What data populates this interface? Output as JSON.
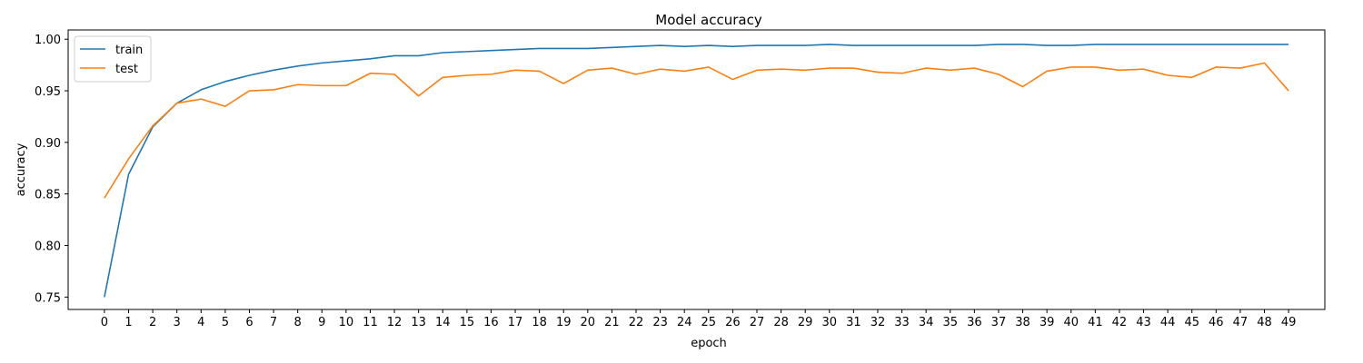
{
  "chart_data": {
    "type": "line",
    "title": "Model accuracy",
    "xlabel": "epoch",
    "ylabel": "accuracy",
    "x": [
      0,
      1,
      2,
      3,
      4,
      5,
      6,
      7,
      8,
      9,
      10,
      11,
      12,
      13,
      14,
      15,
      16,
      17,
      18,
      19,
      20,
      21,
      22,
      23,
      24,
      25,
      26,
      27,
      28,
      29,
      30,
      31,
      32,
      33,
      34,
      35,
      36,
      37,
      38,
      39,
      40,
      41,
      42,
      43,
      44,
      45,
      46,
      47,
      48,
      49
    ],
    "xlim": [
      -1.5,
      50.5
    ],
    "ylim": [
      0.738,
      1.009
    ],
    "yticks": [
      0.75,
      0.8,
      0.85,
      0.9,
      0.95,
      1.0
    ],
    "ytick_labels": [
      "0.75",
      "0.80",
      "0.85",
      "0.90",
      "0.95",
      "1.00"
    ],
    "grid": false,
    "legend_position": "top-left",
    "series": [
      {
        "name": "train",
        "color": "#1f77b4",
        "values": [
          0.75,
          0.869,
          0.915,
          0.938,
          0.951,
          0.959,
          0.965,
          0.97,
          0.974,
          0.977,
          0.979,
          0.981,
          0.984,
          0.984,
          0.987,
          0.988,
          0.989,
          0.99,
          0.991,
          0.991,
          0.991,
          0.992,
          0.993,
          0.994,
          0.993,
          0.994,
          0.993,
          0.994,
          0.994,
          0.994,
          0.995,
          0.994,
          0.994,
          0.994,
          0.994,
          0.994,
          0.994,
          0.995,
          0.995,
          0.994,
          0.994,
          0.995,
          0.995,
          0.995,
          0.995,
          0.995,
          0.995,
          0.995,
          0.995,
          0.995
        ]
      },
      {
        "name": "test",
        "color": "#ff7f0e",
        "values": [
          0.846,
          0.884,
          0.916,
          0.938,
          0.942,
          0.935,
          0.95,
          0.951,
          0.956,
          0.955,
          0.955,
          0.967,
          0.966,
          0.945,
          0.963,
          0.965,
          0.966,
          0.97,
          0.969,
          0.957,
          0.97,
          0.972,
          0.966,
          0.971,
          0.969,
          0.973,
          0.961,
          0.97,
          0.971,
          0.97,
          0.972,
          0.972,
          0.968,
          0.967,
          0.972,
          0.97,
          0.972,
          0.966,
          0.954,
          0.969,
          0.973,
          0.973,
          0.97,
          0.971,
          0.965,
          0.963,
          0.973,
          0.972,
          0.977,
          0.95
        ]
      }
    ]
  }
}
